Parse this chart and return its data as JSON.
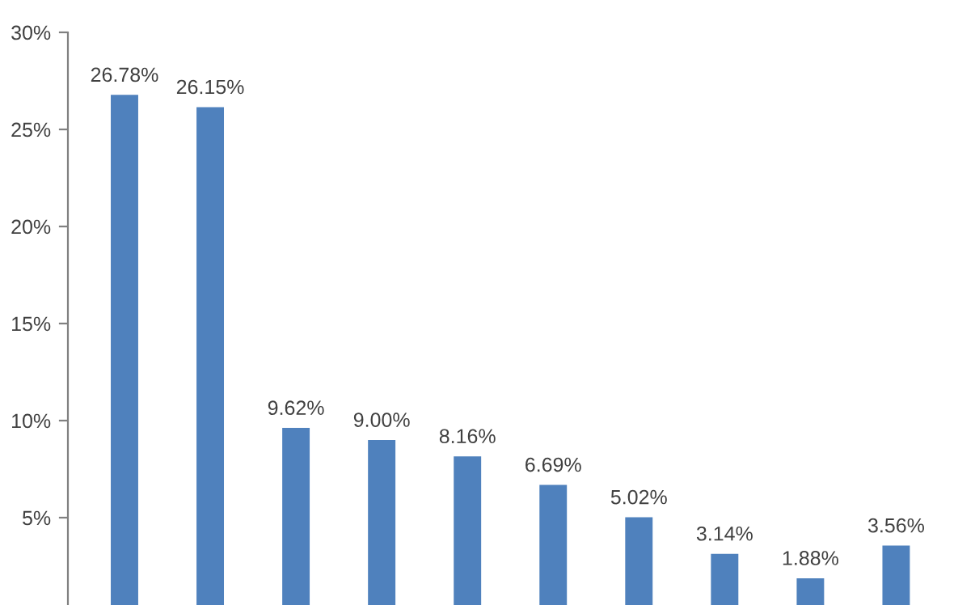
{
  "chart_data": {
    "type": "bar",
    "categories": [
      null,
      null,
      null,
      null,
      null,
      null,
      null,
      null,
      null,
      null
    ],
    "values": [
      26.78,
      26.15,
      9.62,
      9.0,
      8.16,
      6.69,
      5.02,
      3.14,
      1.88,
      3.56
    ],
    "value_labels": [
      "26.78%",
      "26.15%",
      "9.62%",
      "9.00%",
      "8.16%",
      "6.69%",
      "5.02%",
      "3.14%",
      "1.88%",
      "3.56%"
    ],
    "color": "#4f81bd",
    "ylim": [
      0,
      30
    ],
    "yticks": [
      {
        "value": 5,
        "label": "5%"
      },
      {
        "value": 10,
        "label": "10%"
      },
      {
        "value": 15,
        "label": "15%"
      },
      {
        "value": 20,
        "label": "20%"
      },
      {
        "value": 25,
        "label": "25%"
      },
      {
        "value": 30,
        "label": "30%"
      }
    ],
    "grid": false,
    "legend": false
  }
}
